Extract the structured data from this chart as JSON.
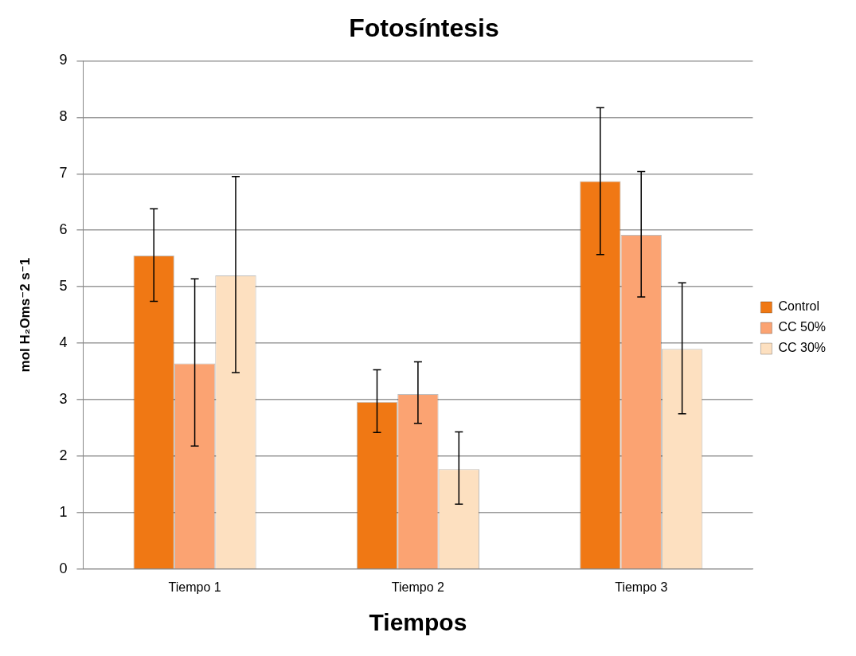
{
  "chart_data": {
    "type": "bar",
    "title": "Fotosíntesis",
    "xlabel": "Tiempos",
    "ylabel": "mol H₂Oms⁻2 s⁻1",
    "categories": [
      "Tiempo 1",
      "Tiempo 2",
      "Tiempo 3"
    ],
    "series": [
      {
        "name": "Control",
        "color": "#f07814",
        "values": [
          5.55,
          2.96,
          6.87
        ],
        "errors": [
          [
            4.74,
            6.38
          ],
          [
            2.42,
            3.53
          ],
          [
            5.57,
            8.17
          ]
        ]
      },
      {
        "name": "CC 50%",
        "color": "#fba372",
        "values": [
          3.64,
          3.1,
          5.92
        ],
        "errors": [
          [
            2.18,
            5.14
          ],
          [
            2.58,
            3.67
          ],
          [
            4.82,
            7.04
          ]
        ]
      },
      {
        "name": "CC 30%",
        "color": "#fde0c0",
        "values": [
          5.2,
          1.77,
          3.9
        ],
        "errors": [
          [
            3.48,
            6.95
          ],
          [
            1.15,
            2.43
          ],
          [
            2.75,
            5.07
          ]
        ]
      }
    ],
    "ylim": [
      0,
      9
    ],
    "yticks": [
      0,
      1,
      2,
      3,
      4,
      5,
      6,
      7,
      8,
      9
    ],
    "grid": "y",
    "legend": "right"
  }
}
